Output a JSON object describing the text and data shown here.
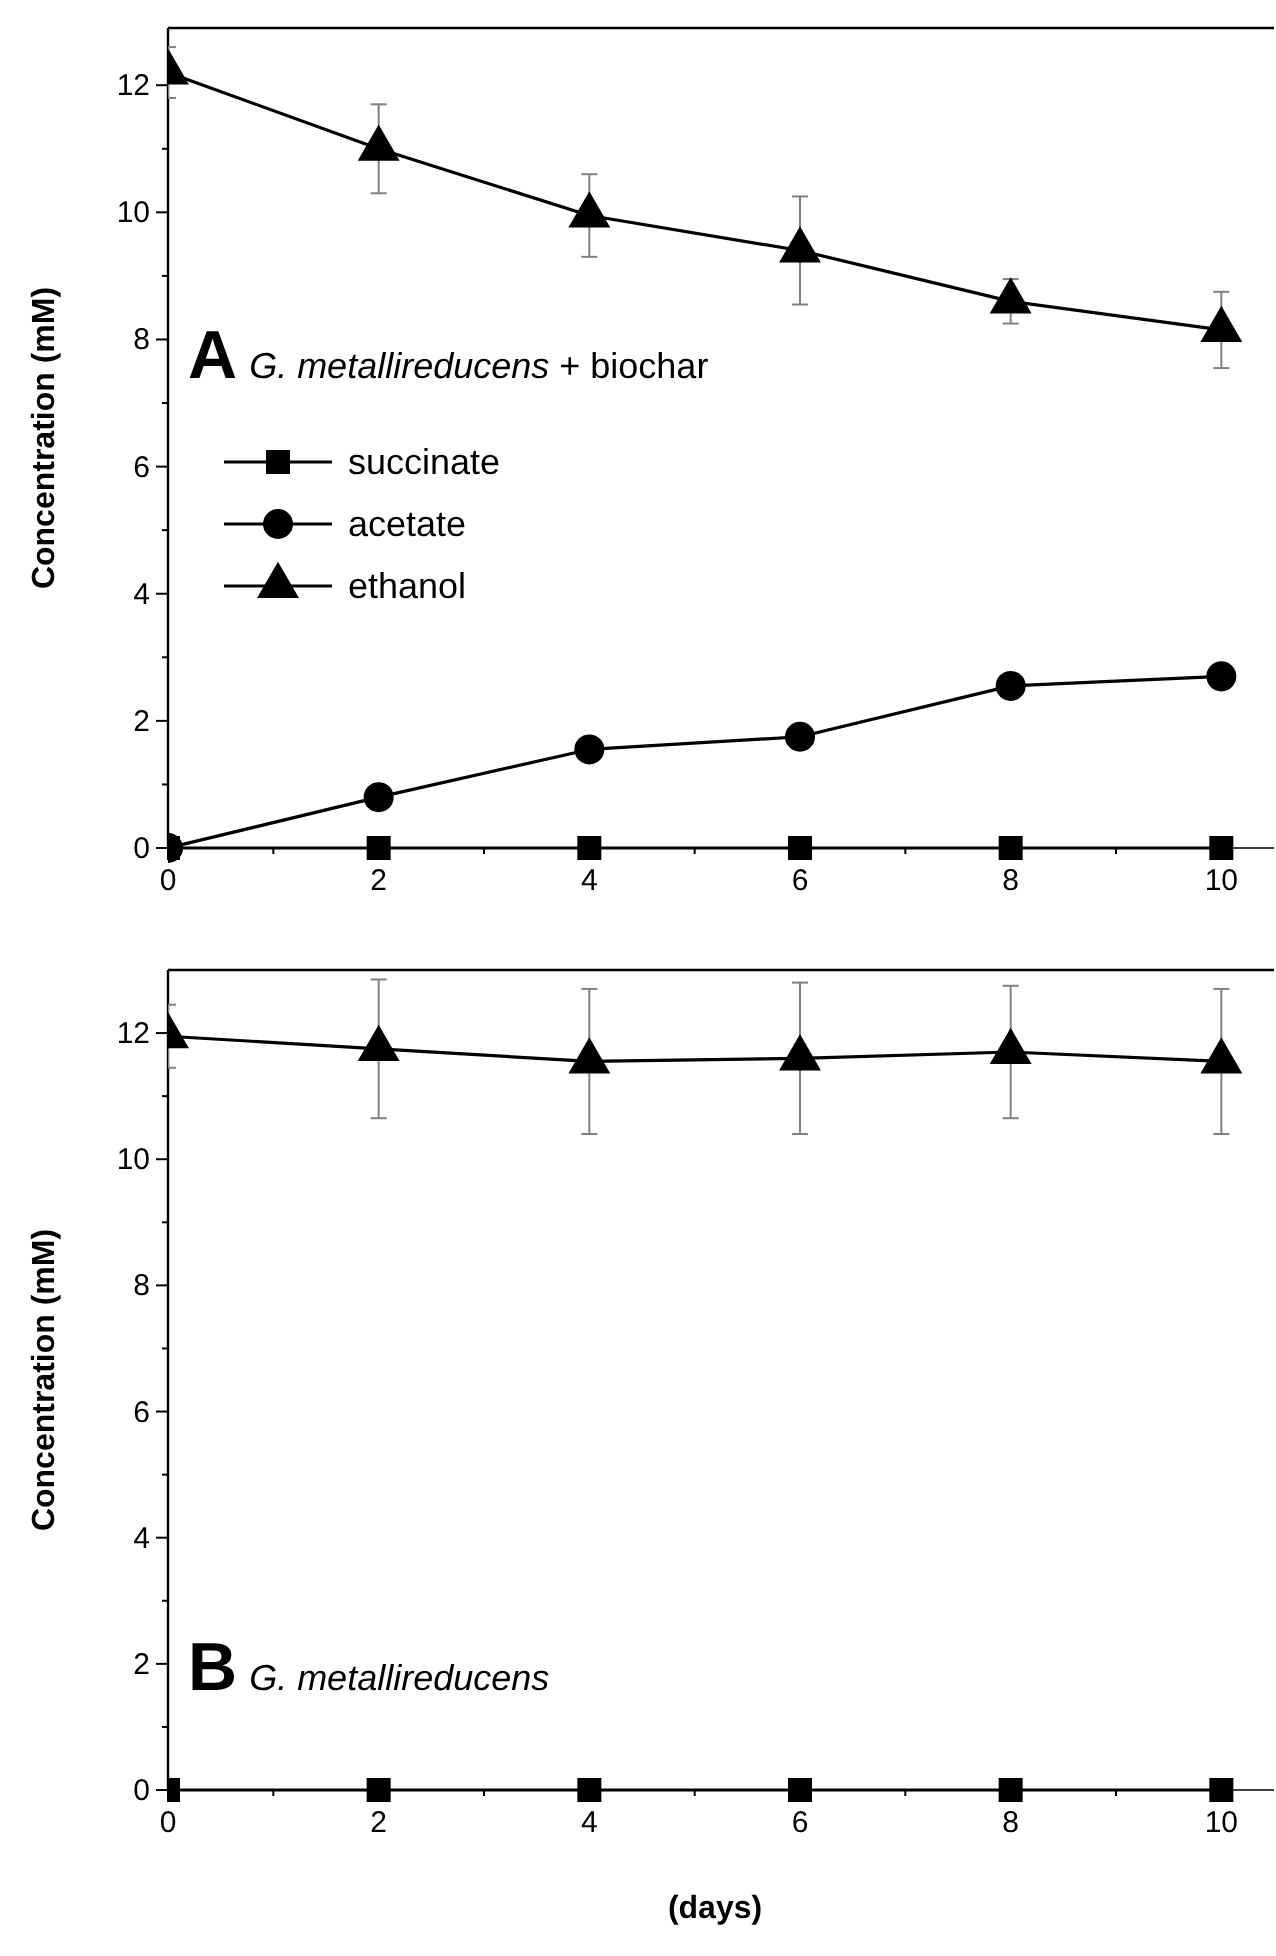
{
  "chart_data": [
    {
      "type": "line",
      "annotations": [
        "A",
        "G. metallireducens",
        " + biochar"
      ],
      "ylabel": "Concentration (mM)",
      "x": [
        0,
        2,
        4,
        6,
        8,
        10
      ],
      "xlim": [
        0,
        10.5
      ],
      "xticks": [
        0,
        2,
        4,
        6,
        8,
        10
      ],
      "ylim": [
        0,
        12.9
      ],
      "yticks": [
        0,
        2,
        4,
        6,
        8,
        10,
        12
      ],
      "legend": "left",
      "line_style": "solid",
      "series": [
        {
          "name": "succinate",
          "color": "#000000",
          "marker": "square",
          "values": [
            0,
            0,
            0,
            0,
            0,
            0
          ]
        },
        {
          "name": "acetate",
          "color": "#000000",
          "marker": "circle",
          "values": [
            0,
            0.8,
            1.55,
            1.75,
            2.55,
            2.7
          ]
        },
        {
          "name": "ethanol",
          "color": "#000000",
          "marker": "triangle",
          "values": [
            12.2,
            11.0,
            9.95,
            9.4,
            8.6,
            8.15
          ],
          "errors": [
            0.4,
            0.7,
            0.65,
            0.85,
            0.35,
            0.6
          ]
        }
      ]
    },
    {
      "type": "line",
      "annotations": [
        "B",
        "G. metallireducens"
      ],
      "ylabel": "Concentration (mM)",
      "xlabel": "(days)",
      "x": [
        0,
        2,
        4,
        6,
        8,
        10
      ],
      "xlim": [
        0,
        10.5
      ],
      "xticks": [
        0,
        2,
        4,
        6,
        8,
        10
      ],
      "ylim": [
        0,
        13
      ],
      "yticks": [
        0,
        2,
        4,
        6,
        8,
        10,
        12
      ],
      "line_style": "solid",
      "series": [
        {
          "color": "#000000",
          "marker": "square",
          "values": [
            0,
            0,
            0,
            0,
            0,
            0
          ]
        },
        {
          "color": "#000000",
          "marker": "triangle",
          "values": [
            11.95,
            11.75,
            11.55,
            11.6,
            11.7,
            11.55
          ],
          "errors": [
            0.5,
            1.1,
            1.15,
            1.2,
            1.05,
            1.15
          ]
        }
      ]
    }
  ]
}
